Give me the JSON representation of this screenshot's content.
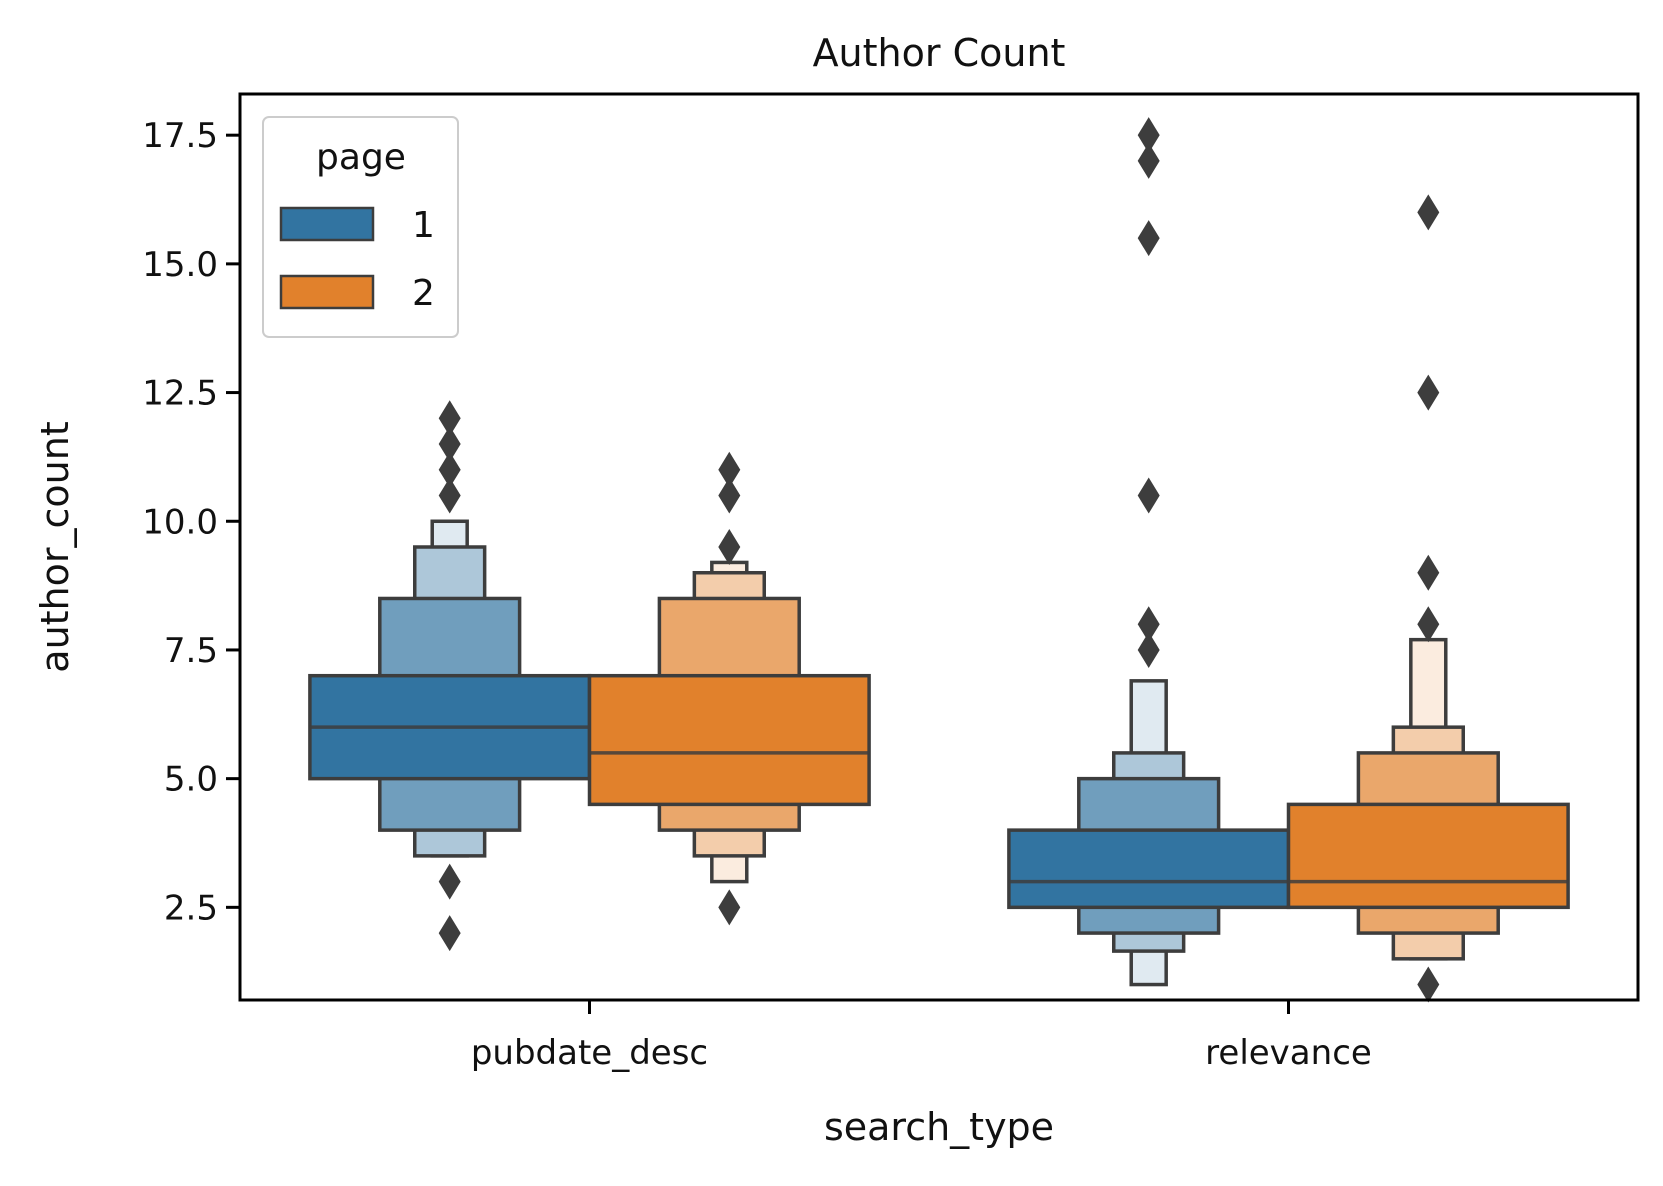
{
  "chart_data": {
    "type": "boxen",
    "title": "Author Count",
    "xlabel": "search_type",
    "ylabel": "author_count",
    "categories": [
      "pubdate_desc",
      "relevance"
    ],
    "ylim": [
      0.7,
      18.3
    ],
    "yticks": [
      2.5,
      5.0,
      7.5,
      10.0,
      12.5,
      15.0,
      17.5
    ],
    "ytick_labels": [
      "2.5",
      "5.0",
      "7.5",
      "10.0",
      "12.5",
      "15.0",
      "17.5"
    ],
    "grid": false,
    "legend": {
      "title": "page",
      "placement": "top-left",
      "entries": [
        {
          "label": "1",
          "color": "#3274a1"
        },
        {
          "label": "2",
          "color": "#e1812c"
        }
      ]
    },
    "series": [
      {
        "name": "1",
        "color": "#3274a1",
        "groups": [
          {
            "category": "pubdate_desc",
            "median": 6.0,
            "boxes": [
              {
                "level": 0,
                "low": 5.0,
                "high": 7.0
              },
              {
                "level": 1,
                "low": 4.0,
                "high": 8.5
              },
              {
                "level": 2,
                "low": 3.5,
                "high": 9.5
              },
              {
                "level": 3,
                "low": 3.5,
                "high": 10.0
              }
            ],
            "outliers": [
              2.0,
              3.0,
              10.5,
              11.0,
              11.5,
              12.0
            ]
          },
          {
            "category": "relevance",
            "median": 3.0,
            "boxes": [
              {
                "level": 0,
                "low": 2.5,
                "high": 4.0
              },
              {
                "level": 1,
                "low": 2.0,
                "high": 5.0
              },
              {
                "level": 2,
                "low": 1.65,
                "high": 5.5
              },
              {
                "level": 3,
                "low": 1.0,
                "high": 6.9
              }
            ],
            "outliers": [
              7.5,
              8.0,
              10.5,
              15.5,
              17.0,
              17.5
            ]
          }
        ]
      },
      {
        "name": "2",
        "color": "#e1812c",
        "groups": [
          {
            "category": "pubdate_desc",
            "median": 5.5,
            "boxes": [
              {
                "level": 0,
                "low": 4.5,
                "high": 7.0
              },
              {
                "level": 1,
                "low": 4.0,
                "high": 8.5
              },
              {
                "level": 2,
                "low": 3.5,
                "high": 9.0
              },
              {
                "level": 3,
                "low": 3.0,
                "high": 9.2
              }
            ],
            "outliers": [
              2.5,
              9.5,
              10.5,
              11.0
            ]
          },
          {
            "category": "relevance",
            "median": 3.0,
            "boxes": [
              {
                "level": 0,
                "low": 2.5,
                "high": 4.5
              },
              {
                "level": 1,
                "low": 2.0,
                "high": 5.5
              },
              {
                "level": 2,
                "low": 1.5,
                "high": 6.0
              },
              {
                "level": 3,
                "low": 1.5,
                "high": 7.7
              }
            ],
            "outliers": [
              1.0,
              8.0,
              9.0,
              12.5,
              16.0
            ]
          }
        ]
      }
    ]
  }
}
